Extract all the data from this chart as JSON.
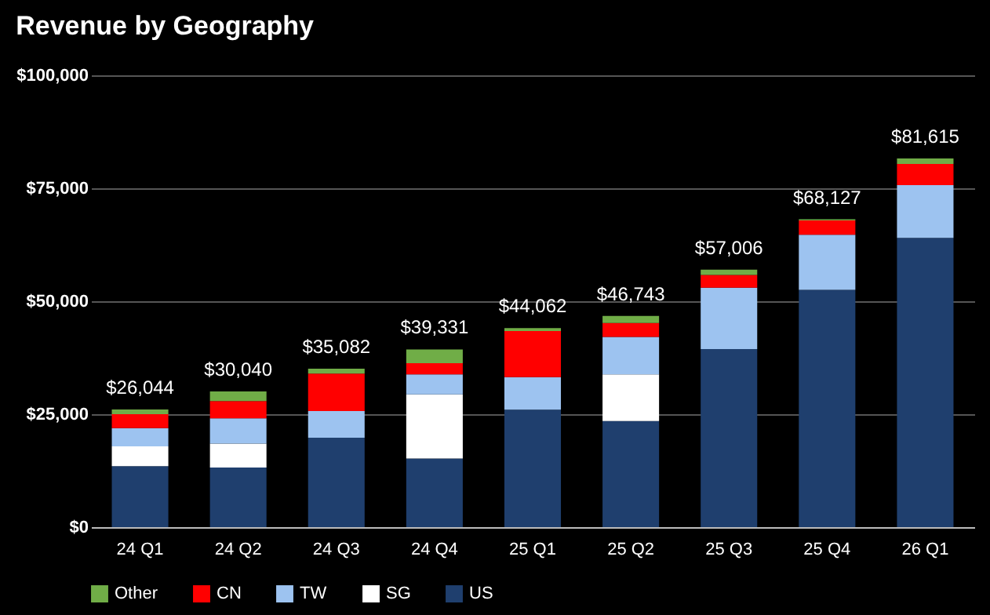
{
  "chart_data": {
    "type": "bar",
    "title": "Revenue by Geography",
    "stacked": true,
    "categories": [
      "24 Q1",
      "24 Q2",
      "24 Q3",
      "24 Q4",
      "25 Q1",
      "25 Q2",
      "25 Q3",
      "25 Q4",
      "26 Q1"
    ],
    "series": [
      {
        "name": "US",
        "color": "#1f3f6e",
        "values": [
          13500,
          13200,
          19800,
          15200,
          26000,
          23500,
          39400,
          52500,
          64000
        ]
      },
      {
        "name": "SG",
        "color": "#ffffff",
        "values": [
          4400,
          5300,
          null,
          14200,
          null,
          10300,
          null,
          null,
          null
        ]
      },
      {
        "name": "TW",
        "color": "#9dc3f0",
        "values": [
          4000,
          5600,
          5900,
          4400,
          7200,
          8300,
          13600,
          12200,
          11700
        ]
      },
      {
        "name": "CN",
        "color": "#ff0000",
        "values": [
          3100,
          3800,
          8300,
          2500,
          10200,
          3100,
          2800,
          3200,
          4700
        ]
      },
      {
        "name": "Other",
        "color": "#70ad47",
        "values": [
          1044,
          2140,
          1082,
          3031,
          662,
          1543,
          1206,
          227,
          1215
        ]
      }
    ],
    "totals": [
      "$26,044",
      "$30,040",
      "$35,082",
      "$39,331",
      "$44,062",
      "$46,743",
      "$57,006",
      "$68,127",
      "$81,615"
    ],
    "ylim": [
      0,
      100000
    ],
    "yticks": [
      {
        "value": 0,
        "label": "$0"
      },
      {
        "value": 25000,
        "label": "$25,000"
      },
      {
        "value": 50000,
        "label": "$50,000"
      },
      {
        "value": 75000,
        "label": "$75,000"
      },
      {
        "value": 100000,
        "label": "$100,000"
      }
    ],
    "grid": "y",
    "legend": "bottom"
  }
}
